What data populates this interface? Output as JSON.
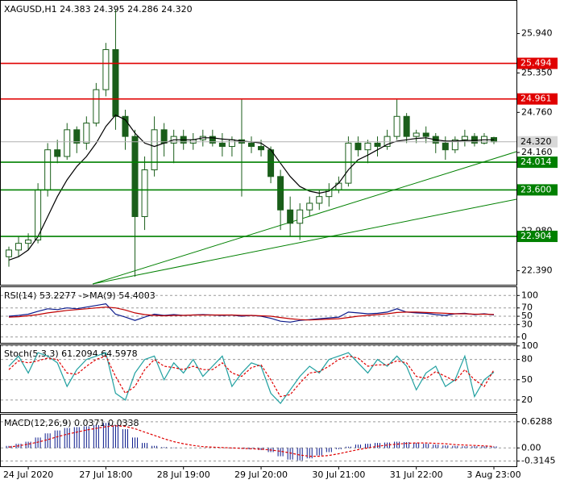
{
  "chart_data": [
    {
      "type": "candlestick",
      "title": "XAGUSD,H1  24.383 24.395 24.286 24.320",
      "categories": [
        null,
        null,
        "24 Jul 2020",
        null,
        null,
        null,
        null,
        null,
        null,
        null,
        "27 Jul 18:00",
        null,
        null,
        null,
        null,
        null,
        null,
        null,
        "28 Jul 19:00",
        null,
        null,
        null,
        null,
        null,
        null,
        null,
        "29 Jul 20:00",
        null,
        null,
        null,
        null,
        null,
        null,
        null,
        "30 Jul 21:00",
        null,
        null,
        null,
        null,
        null,
        null,
        null,
        "31 Jul 22:00",
        null,
        null,
        null,
        null,
        null,
        null,
        null,
        "3 Aug 23:00"
      ],
      "open": [
        22.6,
        22.7,
        22.8,
        22.85,
        23.6,
        24.2,
        24.1,
        24.5,
        24.3,
        24.6,
        25.1,
        25.7,
        24.7,
        24.4,
        23.2,
        23.9,
        24.5,
        24.3,
        24.4,
        24.3,
        24.35,
        24.4,
        24.3,
        24.25,
        24.35,
        24.3,
        24.25,
        24.2,
        23.8,
        23.3,
        23.1,
        23.3,
        23.4,
        23.5,
        23.6,
        23.7,
        24.3,
        24.2,
        24.3,
        24.25,
        24.4,
        24.7,
        24.4,
        24.45,
        24.4,
        24.3,
        24.2,
        24.35,
        24.4,
        24.3,
        24.383
      ],
      "high": [
        22.75,
        22.9,
        22.95,
        23.7,
        24.3,
        24.35,
        24.6,
        24.55,
        24.7,
        25.2,
        25.8,
        26.3,
        24.8,
        24.5,
        24.1,
        24.7,
        24.6,
        24.5,
        24.5,
        24.45,
        24.5,
        24.5,
        24.45,
        24.4,
        24.95,
        24.4,
        24.35,
        24.25,
        23.9,
        23.5,
        23.4,
        23.5,
        23.6,
        23.7,
        23.8,
        24.4,
        24.4,
        24.35,
        24.4,
        24.5,
        24.95,
        24.75,
        24.5,
        24.55,
        24.45,
        24.4,
        24.4,
        24.5,
        24.45,
        24.45,
        24.395
      ],
      "low": [
        22.45,
        22.6,
        22.7,
        22.8,
        23.5,
        24.0,
        24.05,
        24.15,
        24.2,
        24.55,
        25.0,
        24.5,
        24.2,
        22.3,
        23.0,
        23.8,
        24.1,
        24.0,
        24.2,
        24.2,
        24.25,
        24.25,
        24.1,
        24.1,
        23.5,
        24.15,
        24.1,
        23.7,
        23.0,
        22.9,
        22.85,
        23.2,
        23.3,
        23.35,
        23.55,
        23.65,
        24.1,
        24.0,
        24.1,
        24.2,
        24.35,
        24.3,
        24.3,
        24.3,
        24.15,
        24.05,
        24.15,
        24.25,
        24.25,
        24.28,
        24.286
      ],
      "close": [
        22.7,
        22.8,
        22.85,
        23.6,
        24.2,
        24.1,
        24.5,
        24.3,
        24.6,
        25.1,
        25.7,
        24.7,
        24.4,
        23.2,
        23.9,
        24.5,
        24.3,
        24.4,
        24.3,
        24.35,
        24.4,
        24.3,
        24.25,
        24.35,
        24.3,
        24.25,
        24.2,
        23.8,
        23.3,
        23.1,
        23.3,
        23.4,
        23.5,
        23.6,
        23.7,
        24.3,
        24.2,
        24.3,
        24.25,
        24.4,
        24.7,
        24.4,
        24.45,
        24.4,
        24.3,
        24.2,
        24.35,
        24.4,
        24.3,
        24.4,
        24.32
      ],
      "up_color": "#ffffff",
      "down_color": "#1a5e1a",
      "candle_stroke": "#1a5e1a",
      "ma": {
        "color": "#000000",
        "values": [
          22.55,
          22.6,
          22.7,
          22.9,
          23.2,
          23.5,
          23.75,
          23.95,
          24.1,
          24.3,
          24.55,
          24.72,
          24.65,
          24.45,
          24.3,
          24.25,
          24.3,
          24.35,
          24.35,
          24.35,
          24.38,
          24.38,
          24.36,
          24.35,
          24.33,
          24.32,
          24.3,
          24.2,
          24.0,
          23.8,
          23.65,
          23.58,
          23.55,
          23.58,
          23.7,
          23.9,
          24.05,
          24.12,
          24.2,
          24.28,
          24.33,
          24.35,
          24.37,
          24.38,
          24.35,
          24.33,
          24.33,
          24.34,
          24.34,
          24.35,
          24.35
        ]
      },
      "ylim": [
        22.18,
        26.43
      ],
      "yticks": [
        {
          "value": 25.94,
          "label": "25.940"
        },
        {
          "value": 25.35,
          "label": "25.350"
        },
        {
          "value": 24.76,
          "label": "24.760"
        },
        {
          "value": 24.16,
          "label": "24.160"
        },
        {
          "value": 22.98,
          "label": "22.980"
        },
        {
          "value": 22.39,
          "label": "22.390"
        }
      ],
      "levels": [
        {
          "value": 25.494,
          "color": "#e00000"
        },
        {
          "value": 24.961,
          "color": "#e00000"
        },
        {
          "value": 24.014,
          "color": "#008000"
        },
        {
          "value": {
            "value": 23.6,
            "label": "23.600"
          },
          "color": "#008000"
        },
        {
          "value": 22.904,
          "color": "#008000"
        }
      ],
      "current": {
        "value": 24.32,
        "label": "24.320"
      }
    },
    {
      "type": "line",
      "title": "RSI(14) 53.2277 ->MA(9) 54.4003",
      "series": [
        {
          "color": "#0a1a8c",
          "values": [
            50,
            52,
            55,
            62,
            68,
            66,
            70,
            68,
            72,
            76,
            80,
            55,
            48,
            40,
            48,
            55,
            52,
            54,
            52,
            53,
            54,
            53,
            52,
            53,
            50,
            52,
            50,
            45,
            38,
            36,
            40,
            42,
            44,
            46,
            48,
            60,
            58,
            56,
            57,
            60,
            68,
            60,
            58,
            57,
            54,
            52,
            56,
            57,
            54,
            56,
            53.2277
          ]
        },
        {
          "color": "#c00000",
          "values": [
            48,
            49,
            51,
            54,
            58,
            61,
            64,
            66,
            68,
            70,
            72,
            70,
            65,
            58,
            54,
            52,
            51,
            52,
            52,
            53,
            53,
            53,
            53,
            53,
            52,
            52,
            51,
            50,
            47,
            44,
            42,
            41,
            42,
            43,
            44,
            47,
            50,
            52,
            54,
            56,
            59,
            60,
            60,
            59,
            58,
            57,
            56,
            56,
            55,
            55,
            54.4003
          ]
        }
      ],
      "ylim": [
        -14,
        120
      ],
      "yticks": [
        100,
        70,
        50,
        30,
        0
      ],
      "grid": true
    },
    {
      "type": "line",
      "title": "Stoch(5,3,3) 61.2094 64.5978",
      "series": [
        {
          "color": "#20a0a0",
          "values": [
            70,
            85,
            60,
            90,
            85,
            75,
            40,
            65,
            80,
            85,
            90,
            30,
            20,
            60,
            80,
            85,
            50,
            75,
            60,
            80,
            55,
            70,
            85,
            40,
            60,
            75,
            70,
            30,
            15,
            35,
            55,
            70,
            60,
            80,
            85,
            90,
            75,
            60,
            80,
            70,
            85,
            70,
            35,
            60,
            70,
            40,
            50,
            85,
            25,
            50,
            61.2094
          ]
        },
        {
          "color": "#e00000",
          "dashed": true,
          "values": [
            65,
            78,
            75,
            78,
            82,
            80,
            60,
            58,
            70,
            80,
            85,
            55,
            30,
            40,
            65,
            80,
            70,
            68,
            65,
            70,
            65,
            65,
            75,
            60,
            55,
            68,
            72,
            50,
            25,
            28,
            45,
            60,
            62,
            70,
            80,
            85,
            82,
            70,
            72,
            72,
            78,
            75,
            55,
            52,
            62,
            55,
            48,
            65,
            50,
            40,
            64.5978
          ]
        }
      ],
      "ylim": [
        2,
        101
      ],
      "yticks": [
        100,
        80,
        50,
        20
      ],
      "grid": true
    },
    {
      "type": "bar",
      "title": "MACD(12,26,9) 0.0371 0.0338",
      "color": "#0a1a8c",
      "values": [
        0.05,
        0.1,
        0.15,
        0.25,
        0.35,
        0.42,
        0.48,
        0.5,
        0.52,
        0.55,
        0.6,
        0.55,
        0.45,
        0.25,
        0.12,
        0.05,
        0.02,
        0.01,
        0,
        0,
        0,
        0,
        0,
        -0.01,
        -0.02,
        -0.03,
        -0.05,
        -0.1,
        -0.2,
        -0.28,
        -0.3,
        -0.25,
        -0.18,
        -0.1,
        -0.03,
        0.03,
        0.08,
        0.1,
        0.12,
        0.13,
        0.15,
        0.14,
        0.12,
        0.1,
        0.08,
        0.06,
        0.05,
        0.04,
        0.04,
        0.04,
        0.0371
      ],
      "series": [
        {
          "color": "#e00000",
          "dashed": true,
          "values": [
            0.02,
            0.05,
            0.09,
            0.14,
            0.2,
            0.27,
            0.33,
            0.38,
            0.43,
            0.47,
            0.51,
            0.53,
            0.52,
            0.46,
            0.38,
            0.3,
            0.22,
            0.15,
            0.1,
            0.06,
            0.03,
            0.02,
            0.01,
            0,
            -0.01,
            -0.02,
            -0.03,
            -0.05,
            -0.08,
            -0.12,
            -0.17,
            -0.2,
            -0.2,
            -0.18,
            -0.14,
            -0.09,
            -0.04,
            0,
            0.04,
            0.07,
            0.09,
            0.11,
            0.12,
            0.12,
            0.11,
            0.1,
            0.08,
            0.07,
            0.06,
            0.05,
            0.0338
          ]
        }
      ],
      "ylim": [
        -0.44,
        0.8
      ],
      "yticks": [
        0.6288,
        {
          "value": 0,
          "label": "0.00"
        },
        -0.3145
      ],
      "grid": true
    }
  ]
}
